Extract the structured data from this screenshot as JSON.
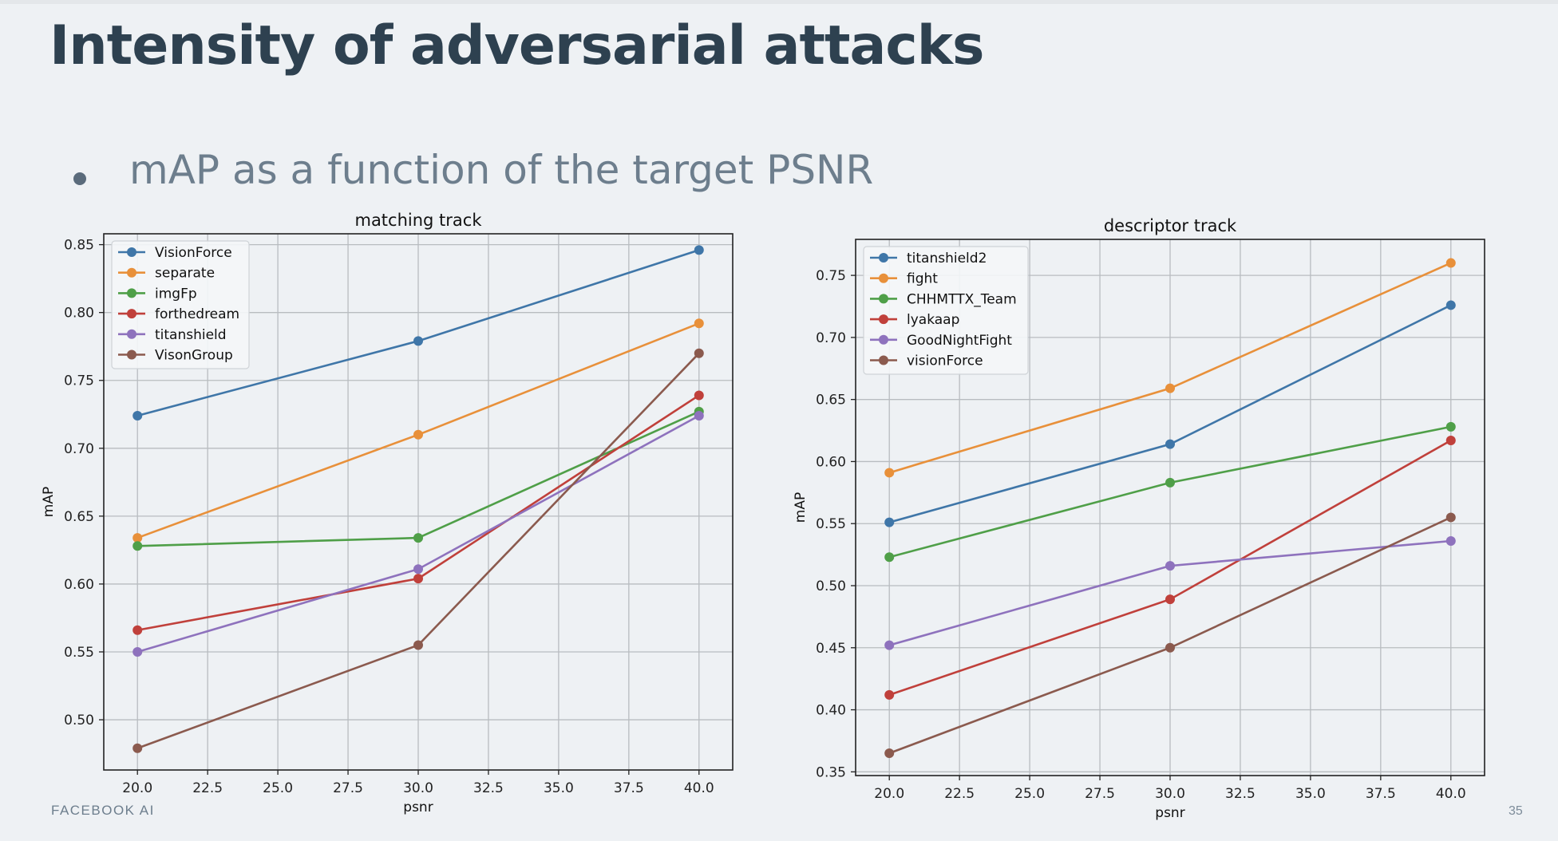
{
  "slide": {
    "title": "Intensity of adversarial attacks",
    "bullet": "mAP as a function of the target PSNR",
    "footer": "FACEBOOK AI",
    "page_number": "35"
  },
  "chart_data": [
    {
      "type": "line",
      "title": "matching track",
      "xlabel": "psnr",
      "ylabel": "mAP",
      "xlim": [
        18.8,
        41.2
      ],
      "ylim": [
        0.463,
        0.858
      ],
      "xticks": [
        20.0,
        22.5,
        25.0,
        27.5,
        30.0,
        32.5,
        35.0,
        37.5,
        40.0
      ],
      "yticks": [
        0.5,
        0.55,
        0.6,
        0.65,
        0.7,
        0.75,
        0.8,
        0.85
      ],
      "grid": true,
      "legend_position": "upper-left",
      "x": [
        20,
        30,
        40
      ],
      "series": [
        {
          "name": "VisionForce",
          "color": "#3f76a8",
          "values": [
            0.724,
            0.779,
            0.846
          ]
        },
        {
          "name": "separate",
          "color": "#e8903a",
          "values": [
            0.634,
            0.71,
            0.792
          ]
        },
        {
          "name": "imgFp",
          "color": "#4f9f48",
          "values": [
            0.628,
            0.634,
            0.727
          ]
        },
        {
          "name": "forthedream",
          "color": "#c0403b",
          "values": [
            0.566,
            0.604,
            0.739
          ]
        },
        {
          "name": "titanshield",
          "color": "#8e72bd",
          "values": [
            0.55,
            0.611,
            0.724
          ]
        },
        {
          "name": "VisonGroup",
          "color": "#8b5a4e",
          "values": [
            0.479,
            0.555,
            0.77
          ]
        }
      ]
    },
    {
      "type": "line",
      "title": "descriptor track",
      "xlabel": "psnr",
      "ylabel": "mAP",
      "xlim": [
        18.8,
        41.2
      ],
      "ylim": [
        0.347,
        0.779
      ],
      "xticks": [
        20.0,
        22.5,
        25.0,
        27.5,
        30.0,
        32.5,
        35.0,
        37.5,
        40.0
      ],
      "yticks": [
        0.35,
        0.4,
        0.45,
        0.5,
        0.55,
        0.6,
        0.65,
        0.7,
        0.75
      ],
      "grid": true,
      "legend_position": "upper-left",
      "x": [
        20,
        30,
        40
      ],
      "series": [
        {
          "name": "titanshield2",
          "color": "#3f76a8",
          "values": [
            0.551,
            0.614,
            0.726
          ]
        },
        {
          "name": "fight",
          "color": "#e8903a",
          "values": [
            0.591,
            0.659,
            0.76
          ]
        },
        {
          "name": "CHHMTTX_Team",
          "color": "#4f9f48",
          "values": [
            0.523,
            0.583,
            0.628
          ]
        },
        {
          "name": "lyakaap",
          "color": "#c0403b",
          "values": [
            0.412,
            0.489,
            0.617
          ]
        },
        {
          "name": "GoodNightFight",
          "color": "#8e72bd",
          "values": [
            0.452,
            0.516,
            0.536
          ]
        },
        {
          "name": "visionForce",
          "color": "#8b5a4e",
          "values": [
            0.365,
            0.45,
            0.555
          ]
        }
      ]
    }
  ]
}
